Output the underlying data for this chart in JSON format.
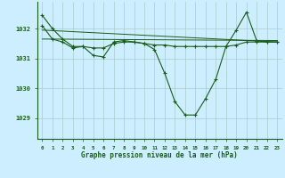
{
  "title": "Graphe pression niveau de la mer (hPa)",
  "bg_color": "#cceeff",
  "plot_bg_color": "#cceeff",
  "grid_color": "#aacccc",
  "line_color": "#1a5c1a",
  "marker_color": "#1a5c1a",
  "x_labels": [
    "0",
    "1",
    "2",
    "3",
    "4",
    "5",
    "6",
    "7",
    "8",
    "9",
    "10",
    "11",
    "12",
    "13",
    "14",
    "15",
    "16",
    "17",
    "18",
    "19",
    "20",
    "21",
    "22",
    "23"
  ],
  "ylim": [
    1028.3,
    1032.9
  ],
  "yticks": [
    1029,
    1030,
    1031,
    1032
  ],
  "series_main": [
    1032.45,
    1032.0,
    1031.65,
    1031.4,
    1031.4,
    1031.1,
    1031.05,
    1031.55,
    1031.6,
    1031.55,
    1031.5,
    1031.3,
    1030.5,
    1029.55,
    1029.1,
    1029.1,
    1029.65,
    1030.3,
    1031.4,
    1031.95,
    1032.55,
    1031.6,
    1031.55,
    1031.55
  ],
  "series_flat1": [
    1032.1,
    1031.65,
    1031.55,
    1031.35,
    1031.4,
    1031.35,
    1031.35,
    1031.5,
    1031.55,
    1031.55,
    1031.55,
    1031.5,
    1031.5,
    1031.45,
    1031.45,
    1031.45,
    1031.45,
    1031.45,
    1031.45,
    1031.5,
    1031.6,
    1031.55,
    1031.55,
    1031.55
  ],
  "series_trend": [
    1032.1,
    1031.65,
    1031.55,
    1031.35,
    1031.4,
    1031.35,
    1031.35,
    1031.5,
    1031.55,
    1031.55,
    1031.55,
    1031.5,
    1031.5,
    1031.45,
    1031.45,
    1031.45,
    1031.45,
    1031.45,
    1031.45,
    1031.5,
    1031.6,
    1031.55,
    1031.55,
    1031.55
  ]
}
